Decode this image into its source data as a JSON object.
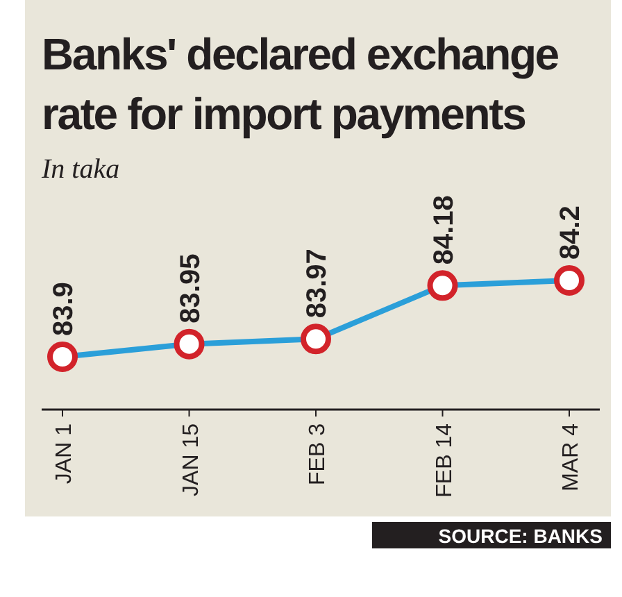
{
  "chart_data": {
    "type": "line",
    "title": "Banks' declared exchange rate for import payments",
    "subtitle": "In taka",
    "categories": [
      "JAN 1",
      "JAN 15",
      "FEB 3",
      "FEB 14",
      "MAR 4"
    ],
    "series": [
      {
        "color": "#2b9fd9",
        "values": [
          83.9,
          83.95,
          83.97,
          84.18,
          84.2
        ]
      }
    ],
    "marker": "circle",
    "data_labels": true,
    "annotations": [
      "SOURCE: BANKS"
    ]
  }
}
